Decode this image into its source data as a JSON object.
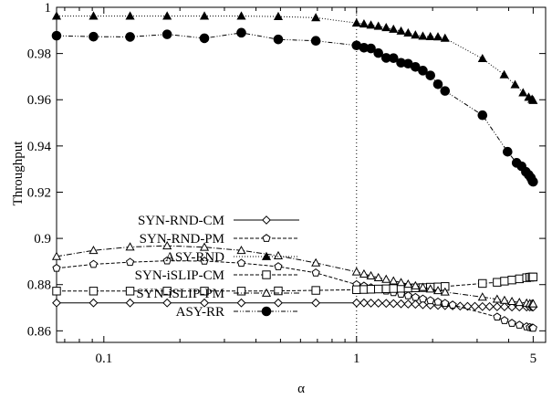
{
  "chart_data": {
    "type": "line",
    "xlabel": "α",
    "ylabel": "Throughput",
    "x_scale": "log",
    "xlim": [
      0.065,
      5.6
    ],
    "ylim": [
      0.855,
      1.0
    ],
    "x_ticks": [
      {
        "value": 0.1,
        "label": "0.1"
      },
      {
        "value": 1,
        "label": "1"
      },
      {
        "value": 5,
        "label": "5"
      }
    ],
    "y_ticks": [
      {
        "value": 0.86,
        "label": "0.86"
      },
      {
        "value": 0.88,
        "label": "0.88"
      },
      {
        "value": 0.9,
        "label": "0.9"
      },
      {
        "value": 0.92,
        "label": "0.92"
      },
      {
        "value": 0.94,
        "label": "0.94"
      },
      {
        "value": 0.96,
        "label": "0.96"
      },
      {
        "value": 0.98,
        "label": "0.98"
      },
      {
        "value": 1.0,
        "label": "1"
      }
    ],
    "grid": "dotted vertical line at x=1",
    "legend_placement": "center-left",
    "series": [
      {
        "name": "SYN-RND-CM",
        "marker": "diamond-open",
        "dash": "solid",
        "x": [
          0.065,
          0.091,
          0.127,
          0.178,
          0.25,
          0.35,
          0.49,
          0.69,
          1.0,
          1.07,
          1.14,
          1.22,
          1.31,
          1.4,
          1.5,
          1.6,
          1.71,
          1.83,
          1.96,
          2.1,
          2.24,
          2.4,
          2.57,
          2.75,
          2.94,
          3.15,
          3.36,
          3.6,
          3.85,
          4.12,
          4.41,
          4.71,
          4.85,
          4.95,
          5.0
        ],
        "y": [
          0.8721,
          0.8721,
          0.8721,
          0.8721,
          0.8721,
          0.8721,
          0.8721,
          0.8721,
          0.8721,
          0.8721,
          0.872,
          0.872,
          0.8719,
          0.8718,
          0.8717,
          0.8716,
          0.8715,
          0.8713,
          0.8711,
          0.871,
          0.8709,
          0.8708,
          0.8707,
          0.8706,
          0.8706,
          0.8705,
          0.8705,
          0.8704,
          0.8704,
          0.8703,
          0.8703,
          0.8703,
          0.8703,
          0.8703,
          0.8703
        ]
      },
      {
        "name": "SYN-RND-PM",
        "marker": "pentagon-open",
        "dash": "dashed",
        "x": [
          0.065,
          0.091,
          0.127,
          0.178,
          0.25,
          0.35,
          0.49,
          0.69,
          1.0,
          1.07,
          1.14,
          1.22,
          1.31,
          1.4,
          1.5,
          1.6,
          1.71,
          1.83,
          1.96,
          2.1,
          2.24,
          2.4,
          3.6,
          3.85,
          4.12,
          4.41,
          4.71,
          4.85,
          4.95,
          5.0
        ],
        "y": [
          0.8871,
          0.8888,
          0.8897,
          0.8903,
          0.8902,
          0.8893,
          0.8878,
          0.8851,
          0.88,
          0.8794,
          0.8787,
          0.878,
          0.8773,
          0.8766,
          0.8759,
          0.8752,
          0.8745,
          0.8738,
          0.8731,
          0.8725,
          0.8719,
          0.8712,
          0.866,
          0.8645,
          0.8633,
          0.8625,
          0.8618,
          0.8615,
          0.8613,
          0.8612
        ]
      },
      {
        "name": "ASY-RND",
        "marker": "triangle-filled",
        "dash": "dotted",
        "x": [
          0.065,
          0.091,
          0.127,
          0.178,
          0.25,
          0.35,
          0.49,
          0.69,
          1.0,
          1.07,
          1.14,
          1.22,
          1.31,
          1.4,
          1.5,
          1.6,
          1.71,
          1.83,
          1.96,
          2.1,
          2.24,
          3.15,
          3.84,
          4.24,
          4.56,
          4.8,
          4.95,
          5.0
        ],
        "y": [
          0.9962,
          0.9962,
          0.9962,
          0.9962,
          0.9962,
          0.9962,
          0.996,
          0.9955,
          0.9932,
          0.9928,
          0.9923,
          0.9918,
          0.9912,
          0.9905,
          0.9897,
          0.9889,
          0.988,
          0.9875,
          0.9873,
          0.9872,
          0.9866,
          0.9778,
          0.9708,
          0.9665,
          0.963,
          0.9611,
          0.9602,
          0.9597
        ]
      },
      {
        "name": "SYN-iSLIP-CM",
        "marker": "square-open",
        "dash": "dashed",
        "x": [
          0.065,
          0.091,
          0.127,
          0.178,
          0.25,
          0.35,
          0.49,
          0.69,
          1.0,
          1.07,
          1.14,
          1.22,
          1.31,
          1.4,
          1.5,
          1.6,
          1.71,
          1.83,
          1.96,
          2.1,
          2.24,
          3.15,
          3.6,
          3.85,
          4.12,
          4.41,
          4.71,
          4.85,
          4.95,
          5.0
        ],
        "y": [
          0.8772,
          0.8772,
          0.8772,
          0.8772,
          0.8772,
          0.8772,
          0.8773,
          0.8775,
          0.8778,
          0.8779,
          0.878,
          0.8781,
          0.8782,
          0.8783,
          0.8784,
          0.8785,
          0.8786,
          0.8787,
          0.8789,
          0.879,
          0.8792,
          0.8805,
          0.881,
          0.8815,
          0.882,
          0.8825,
          0.883,
          0.8832,
          0.8833,
          0.8833
        ]
      },
      {
        "name": "SYN-iSLIP-PM",
        "marker": "triangle-open",
        "dash": "dashdot",
        "x": [
          0.065,
          0.091,
          0.127,
          0.178,
          0.25,
          0.35,
          0.49,
          0.69,
          1.0,
          1.07,
          1.14,
          1.22,
          1.31,
          1.4,
          1.5,
          1.6,
          1.71,
          1.83,
          1.96,
          2.1,
          2.24,
          3.15,
          3.6,
          3.85,
          4.12,
          4.41,
          4.71,
          4.85,
          4.95,
          5.0
        ],
        "y": [
          0.8922,
          0.8948,
          0.8963,
          0.8968,
          0.8962,
          0.8948,
          0.8925,
          0.8894,
          0.8855,
          0.8846,
          0.8838,
          0.883,
          0.8823,
          0.8816,
          0.8809,
          0.8802,
          0.8795,
          0.8788,
          0.8781,
          0.8774,
          0.8768,
          0.8746,
          0.8737,
          0.8732,
          0.8727,
          0.8723,
          0.872,
          0.8718,
          0.8717,
          0.8717
        ]
      },
      {
        "name": "ASY-RR",
        "marker": "circle-filled",
        "dash": "dashdotdot",
        "x": [
          0.065,
          0.091,
          0.127,
          0.178,
          0.25,
          0.35,
          0.49,
          0.69,
          1.0,
          1.07,
          1.14,
          1.22,
          1.31,
          1.4,
          1.5,
          1.6,
          1.71,
          1.83,
          1.96,
          2.1,
          2.24,
          3.15,
          3.96,
          4.3,
          4.5,
          4.68,
          4.8,
          4.9,
          4.97,
          5.0
        ],
        "y": [
          0.9877,
          0.9873,
          0.9872,
          0.9883,
          0.9866,
          0.989,
          0.9861,
          0.9855,
          0.9835,
          0.9825,
          0.9822,
          0.9802,
          0.9781,
          0.978,
          0.976,
          0.9756,
          0.9742,
          0.9726,
          0.9705,
          0.9667,
          0.9638,
          0.9533,
          0.9375,
          0.9327,
          0.9312,
          0.9288,
          0.9275,
          0.9262,
          0.9248,
          0.9245
        ]
      }
    ]
  }
}
